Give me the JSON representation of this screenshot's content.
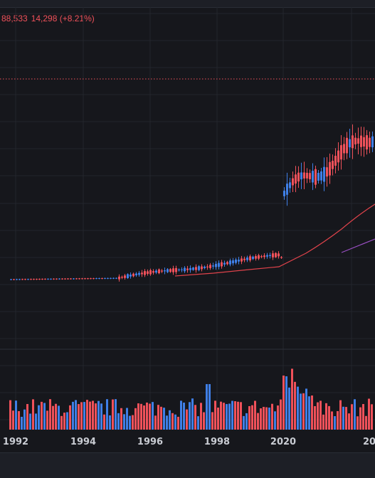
{
  "legend": {
    "price": "88,533",
    "change": "14,298 (+8.21%)"
  },
  "colors": {
    "up": "#f0515a",
    "down": "#3f7fe6",
    "ma_red": "#e1434b",
    "ma_purple": "#9a4fc4",
    "grid": "#23252c",
    "dotted_line": "#f0515a"
  },
  "chart_data": {
    "type": "candlestick",
    "title": "",
    "x_ticks": [
      "1992",
      "1994",
      "1996",
      "1998",
      "2020",
      "20"
    ],
    "grid": true,
    "y_scale": "log",
    "reference_line": "dotted horizontal line near the top of price pane",
    "series": [
      {
        "segment": "flat early period",
        "x_range": [
          "1991",
          "1996"
        ],
        "level": "low and flat"
      },
      {
        "segment": "gradual rise",
        "x_range": [
          "1996",
          "2019"
        ],
        "level": "slow climb"
      },
      {
        "segment": "jump and rally",
        "x_range": [
          "2020",
          "2020+"
        ],
        "level": "gap up then steep rise"
      }
    ],
    "volume": {
      "type": "bar",
      "colors": [
        "up",
        "down"
      ]
    }
  }
}
